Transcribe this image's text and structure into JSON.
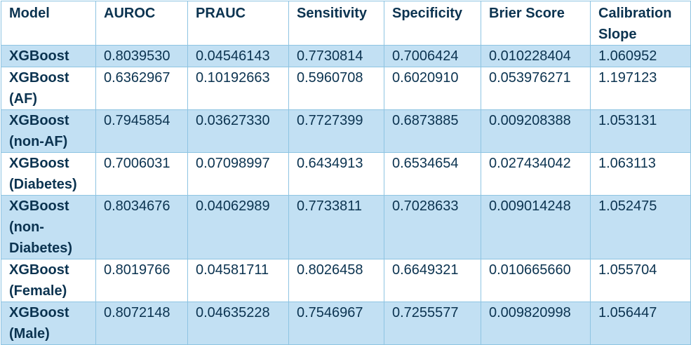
{
  "table": {
    "headers": [
      "Model",
      "AUROC",
      "PRAUC",
      "Sensitivity",
      "Specificity",
      "Brier Score",
      "Calibration Slope"
    ],
    "rows": [
      {
        "model": "XGBoost",
        "auroc": "0.8039530",
        "prauc": "0.04546143",
        "sensitivity": "0.7730814",
        "specificity": "0.7006424",
        "brier": "0.010228404",
        "slope": "1.060952"
      },
      {
        "model": "XGBoost (AF)",
        "auroc": "0.6362967",
        "prauc": "0.10192663",
        "sensitivity": "0.5960708",
        "specificity": "0.6020910",
        "brier": "0.053976271",
        "slope": "1.197123"
      },
      {
        "model": "XGBoost (non-AF)",
        "auroc": "0.7945854",
        "prauc": "0.03627330",
        "sensitivity": "0.7727399",
        "specificity": "0.6873885",
        "brier": "0.009208388",
        "slope": "1.053131"
      },
      {
        "model": "XGBoost (Diabetes)",
        "auroc": "0.7006031",
        "prauc": "0.07098997",
        "sensitivity": "0.6434913",
        "specificity": "0.6534654",
        "brier": "0.027434042",
        "slope": "1.063113"
      },
      {
        "model": "XGBoost (non-Diabetes)",
        "auroc": "0.8034676",
        "prauc": "0.04062989",
        "sensitivity": "0.7733811",
        "specificity": "0.7028633",
        "brier": "0.009014248",
        "slope": "1.052475"
      },
      {
        "model": "XGBoost (Female)",
        "auroc": "0.8019766",
        "prauc": "0.04581711",
        "sensitivity": "0.8026458",
        "specificity": "0.6649321",
        "brier": "0.010665660",
        "slope": "1.055704"
      },
      {
        "model": "XGBoost (Male)",
        "auroc": "0.8072148",
        "prauc": "0.04635228",
        "sensitivity": "0.7546967",
        "specificity": "0.7255577",
        "brier": "0.009820998",
        "slope": "1.056447"
      }
    ]
  },
  "colors": {
    "text": "#0b3350",
    "row_shade": "#c2e0f3",
    "border": "#8ec4e2"
  }
}
